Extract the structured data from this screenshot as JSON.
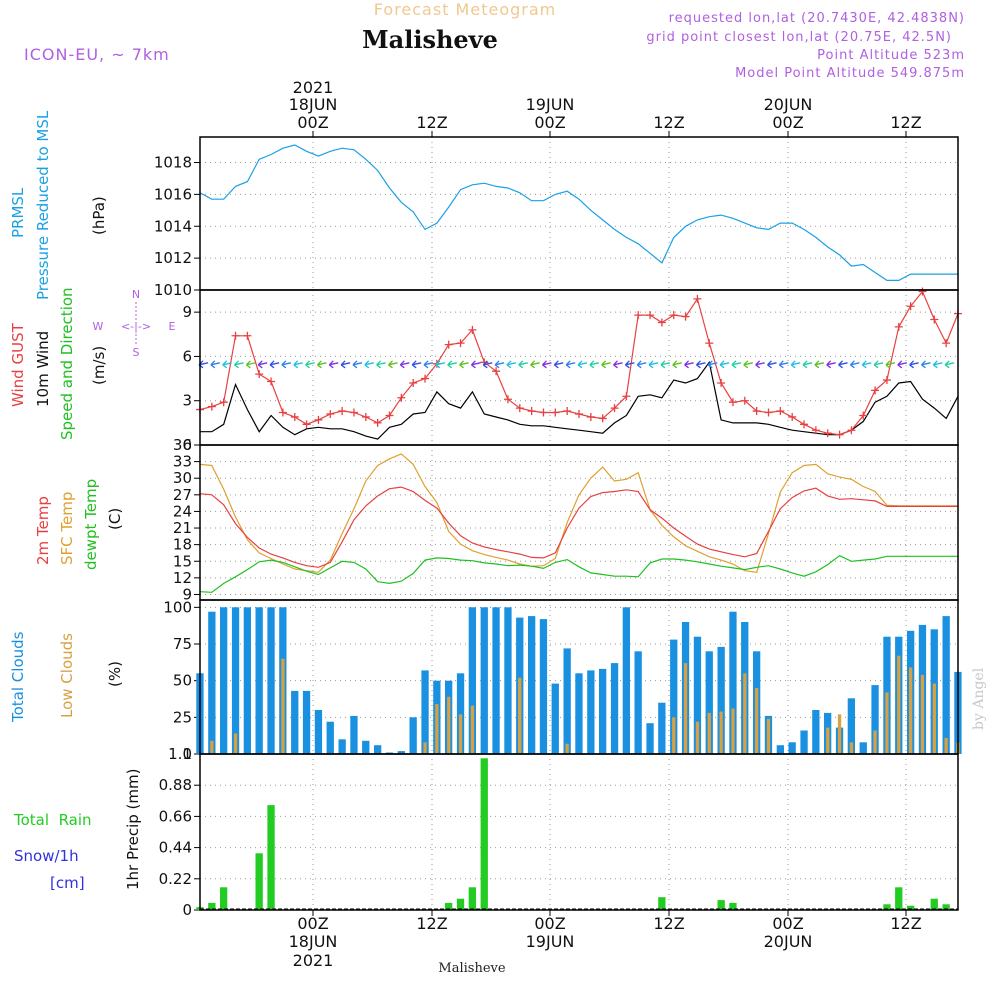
{
  "header": {
    "supertitle": "Forecast Meteogram",
    "location": "Malisheve",
    "model": "ICON-EU, ~ 7km",
    "requested": "requested lon,lat (20.7430E, 42.4838N)",
    "gridpoint": "grid point closest lon,lat (20.75E, 42.5N)",
    "point_alt": "Point Altitude 523m",
    "model_alt": "Model Point Altitude 549.875m",
    "footer": "Malisheve",
    "credit": "by Angel"
  },
  "time_axis": {
    "top_ticks": [
      "00Z",
      "12Z",
      "00Z",
      "12Z",
      "00Z",
      "12Z"
    ],
    "top_dates": [
      "18JUN",
      "19JUN",
      "20JUN"
    ],
    "year": "2021",
    "bottom_ticks": [
      "00Z",
      "12Z",
      "00Z",
      "12Z",
      "00Z",
      "12Z"
    ],
    "bottom_dates": [
      "18JUN",
      "19JUN",
      "20JUN"
    ]
  },
  "panel_labels": {
    "prmsl": [
      "PRMSL",
      "Pressure Reduced to MSL",
      "(hPa)"
    ],
    "wind": [
      "Wind GUST",
      "10m Wind",
      "Speed and Direction",
      "(m/s)"
    ],
    "compass": [
      "N",
      "S",
      "W",
      "E",
      "<-|->"
    ],
    "temp": [
      "2m Temp",
      "SFC Temp",
      "dewpt Temp",
      "(C)"
    ],
    "clouds": [
      "Total Clouds",
      "Low Clouds",
      "(%)"
    ],
    "precip": [
      "Total  Rain",
      "Snow/1h",
      "[cm]",
      "1hr Precip (mm)"
    ]
  },
  "colors": {
    "pressure": "#1aa0e6",
    "gust": "#e84040",
    "wind": "#000000",
    "t2m": "#e84040",
    "tsfc": "#e0a030",
    "dewpt": "#20c020",
    "total_clouds": "#1a90e0",
    "low_clouds": "#d8a040",
    "rain": "#22cc22",
    "snow": "#3030e0",
    "title": "#5e5e5e",
    "supertitle": "#f0c890",
    "meta": "#b060e0"
  },
  "chart_data": [
    {
      "type": "line",
      "name": "prmsl",
      "x": [
        0,
        1,
        2,
        3,
        4,
        5,
        6,
        7,
        8,
        9,
        10,
        11,
        12,
        13,
        14,
        15,
        16,
        17,
        18,
        19,
        20,
        21,
        22,
        23,
        24,
        25,
        26,
        27,
        28,
        29,
        30,
        31,
        32,
        33,
        34,
        35,
        36,
        37,
        38,
        39,
        40,
        41,
        42,
        43,
        44,
        45,
        46,
        47,
        48,
        49,
        50,
        51,
        52,
        53,
        54,
        55,
        56,
        57,
        58,
        59,
        60,
        61,
        62,
        63,
        64
      ],
      "y": [
        1016.1,
        1015.7,
        1015.7,
        1016.5,
        1016.8,
        1018.2,
        1018.5,
        1018.9,
        1019.1,
        1018.7,
        1018.4,
        1018.7,
        1018.9,
        1018.8,
        1018.2,
        1017.5,
        1016.4,
        1015.5,
        1014.9,
        1013.8,
        1014.2,
        1015.2,
        1016.3,
        1016.6,
        1016.7,
        1016.5,
        1016.4,
        1016.1,
        1015.6,
        1015.6,
        1016.0,
        1016.2,
        1015.7,
        1015.0,
        1014.4,
        1013.8,
        1013.3,
        1012.9,
        1012.3,
        1011.7,
        1013.3,
        1014.0,
        1014.4,
        1014.6,
        1014.7,
        1014.5,
        1014.2,
        1013.9,
        1013.8,
        1014.2,
        1014.2,
        1013.8,
        1013.3,
        1012.7,
        1012.2,
        1011.5,
        1011.6,
        1011.1,
        1010.6,
        1010.6,
        1011.0,
        1011.0,
        1011.0,
        1011.0,
        1011.0
      ],
      "ylim": [
        1010,
        1019.6
      ],
      "yticks": [
        1010,
        1012,
        1014,
        1016,
        1018
      ]
    },
    {
      "type": "line",
      "name": "wind",
      "x": [
        0,
        1,
        2,
        3,
        4,
        5,
        6,
        7,
        8,
        9,
        10,
        11,
        12,
        13,
        14,
        15,
        16,
        17,
        18,
        19,
        20,
        21,
        22,
        23,
        24,
        25,
        26,
        27,
        28,
        29,
        30,
        31,
        32,
        33,
        34,
        35,
        36,
        37,
        38,
        39,
        40,
        41,
        42,
        43,
        44,
        45,
        46,
        47,
        48,
        49,
        50,
        51,
        52,
        53,
        54,
        55,
        56,
        57,
        58,
        59,
        60,
        61,
        62,
        63,
        64
      ],
      "gust": [
        2.4,
        2.6,
        2.9,
        7.4,
        7.4,
        4.8,
        4.3,
        2.2,
        1.9,
        1.4,
        1.7,
        2.1,
        2.3,
        2.2,
        1.9,
        1.5,
        2.0,
        3.2,
        4.2,
        4.5,
        5.5,
        6.8,
        6.9,
        7.8,
        5.6,
        5.0,
        3.1,
        2.5,
        2.3,
        2.2,
        2.2,
        2.3,
        2.1,
        1.9,
        1.8,
        2.5,
        3.3,
        8.8,
        8.8,
        8.3,
        8.8,
        8.7,
        9.9,
        6.9,
        4.2,
        2.9,
        3.0,
        2.3,
        2.2,
        2.3,
        1.9,
        1.4,
        1.0,
        0.8,
        0.7,
        1.0,
        2.0,
        3.7,
        4.4,
        8.0,
        9.4,
        10.4,
        8.5,
        6.9,
        8.9
      ],
      "speed": [
        0.9,
        0.9,
        1.4,
        4.1,
        2.4,
        0.9,
        2.0,
        1.2,
        0.7,
        1.1,
        1.2,
        1.1,
        1.1,
        0.9,
        0.6,
        0.4,
        1.2,
        1.4,
        2.1,
        2.2,
        3.6,
        2.8,
        2.5,
        3.6,
        2.1,
        1.9,
        1.7,
        1.4,
        1.3,
        1.3,
        1.2,
        1.1,
        1.0,
        0.9,
        0.8,
        1.5,
        2.0,
        3.3,
        3.4,
        3.2,
        4.4,
        4.2,
        4.5,
        5.6,
        1.7,
        1.5,
        1.5,
        1.5,
        1.4,
        1.2,
        1.0,
        0.9,
        0.8,
        0.7,
        0.7,
        1.0,
        1.6,
        2.9,
        3.3,
        4.2,
        4.3,
        3.1,
        2.5,
        1.8,
        3.3
      ],
      "ylim": [
        0,
        10.5
      ],
      "yticks": [
        0,
        3,
        6,
        9
      ]
    },
    {
      "type": "line",
      "name": "temperature",
      "x": [
        0,
        1,
        2,
        3,
        4,
        5,
        6,
        7,
        8,
        9,
        10,
        11,
        12,
        13,
        14,
        15,
        16,
        17,
        18,
        19,
        20,
        21,
        22,
        23,
        24,
        25,
        26,
        27,
        28,
        29,
        30,
        31,
        32,
        33,
        34,
        35,
        36,
        37,
        38,
        39,
        40,
        41,
        42,
        43,
        44,
        45,
        46,
        47,
        48,
        49,
        50,
        51,
        52,
        53,
        54,
        55,
        56,
        57,
        58,
        59,
        60,
        61,
        62,
        63,
        64
      ],
      "t2m": [
        27.2,
        27.0,
        25.2,
        21.8,
        19.3,
        17.4,
        16.3,
        15.6,
        14.8,
        14.2,
        13.9,
        14.8,
        18.5,
        22.5,
        25.0,
        26.8,
        28.1,
        28.4,
        27.6,
        26.0,
        24.6,
        21.9,
        19.6,
        18.3,
        17.6,
        17.1,
        16.7,
        16.3,
        15.7,
        15.6,
        16.5,
        21.0,
        24.6,
        26.7,
        27.4,
        27.6,
        27.9,
        27.6,
        24.3,
        22.8,
        21.0,
        19.5,
        18.1,
        17.2,
        16.7,
        16.2,
        15.8,
        16.4,
        20.4,
        24.5,
        26.5,
        27.7,
        28.2,
        26.8,
        26.2,
        26.3,
        26.1,
        25.9,
        24.9,
        24.9,
        24.9,
        24.9,
        24.9,
        24.9,
        24.9
      ],
      "tsfc": [
        32.5,
        32.3,
        28.0,
        23.0,
        18.9,
        16.5,
        15.5,
        14.5,
        13.6,
        13.3,
        13.0,
        15.2,
        20.0,
        24.5,
        29.5,
        32.3,
        33.5,
        34.4,
        32.5,
        28.5,
        25.6,
        20.4,
        18.1,
        16.9,
        16.2,
        15.7,
        15.2,
        14.5,
        14.1,
        14.2,
        15.5,
        22.0,
        27.0,
        30.0,
        32.0,
        29.5,
        29.8,
        31.0,
        24.3,
        21.5,
        19.4,
        17.8,
        16.8,
        15.8,
        15.2,
        14.5,
        13.3,
        13.0,
        20.0,
        27.5,
        31.0,
        32.3,
        32.5,
        30.8,
        30.2,
        29.8,
        28.5,
        27.6,
        25.1,
        25.0,
        25.0,
        25.0,
        25.0,
        25.0,
        25.0
      ],
      "dewpt": [
        9.5,
        9.4,
        11.0,
        12.2,
        13.5,
        14.9,
        15.2,
        14.8,
        14.0,
        13.2,
        12.6,
        13.8,
        15.0,
        14.8,
        13.6,
        11.3,
        11.0,
        11.4,
        12.8,
        15.2,
        15.6,
        15.5,
        15.2,
        15.1,
        14.7,
        14.5,
        14.2,
        14.3,
        14.1,
        13.7,
        14.8,
        15.3,
        14.0,
        12.9,
        12.6,
        12.3,
        12.3,
        12.2,
        14.7,
        15.4,
        15.4,
        15.2,
        14.9,
        14.5,
        14.1,
        13.8,
        13.5,
        13.9,
        14.2,
        13.6,
        12.9,
        12.3,
        13.1,
        14.4,
        16.0,
        15.0,
        15.2,
        15.4,
        15.9,
        15.9,
        15.9,
        15.9,
        15.9,
        15.9,
        15.9
      ],
      "ylim": [
        8,
        36
      ],
      "yticks": [
        9,
        12,
        15,
        18,
        21,
        24,
        27,
        30,
        33,
        36
      ]
    },
    {
      "type": "bar",
      "name": "clouds",
      "x": [
        0,
        1,
        2,
        3,
        4,
        5,
        6,
        7,
        8,
        9,
        10,
        11,
        12,
        13,
        14,
        15,
        16,
        17,
        18,
        19,
        20,
        21,
        22,
        23,
        24,
        25,
        26,
        27,
        28,
        29,
        30,
        31,
        32,
        33,
        34,
        35,
        36,
        37,
        38,
        39,
        40,
        41,
        42,
        43,
        44,
        45,
        46,
        47,
        48,
        49,
        50,
        51,
        52,
        53,
        54,
        55,
        56,
        57,
        58,
        59,
        60,
        61,
        62,
        63,
        64
      ],
      "total": [
        55,
        97,
        100,
        100,
        100,
        100,
        100,
        100,
        43,
        43,
        30,
        22,
        10,
        26,
        9,
        6,
        1,
        2,
        25,
        57,
        50,
        50,
        55,
        100,
        100,
        100,
        100,
        93,
        94,
        92,
        48,
        72,
        55,
        57,
        58,
        62,
        100,
        70,
        21,
        35,
        78,
        90,
        80,
        70,
        73,
        97,
        90,
        70,
        26,
        6,
        8,
        16,
        30,
        28,
        18,
        38,
        8,
        47,
        80,
        80,
        84,
        88,
        85,
        94,
        56
      ],
      "low": [
        0,
        9,
        0,
        14,
        0,
        0,
        0,
        65,
        0,
        0,
        0,
        0,
        0,
        0,
        0,
        0,
        0,
        0,
        0,
        8,
        34,
        39,
        27,
        33,
        0,
        0,
        0,
        52,
        0,
        0,
        0,
        7,
        0,
        0,
        0,
        0,
        0,
        0,
        0,
        0,
        25,
        62,
        22,
        28,
        29,
        31,
        55,
        45,
        24,
        0,
        0,
        0,
        0,
        18,
        27,
        8,
        0,
        16,
        42,
        67,
        59,
        54,
        48,
        11,
        8
      ],
      "ylim": [
        0,
        105
      ],
      "yticks": [
        0,
        25,
        50,
        75,
        100
      ]
    },
    {
      "type": "bar",
      "name": "precip",
      "x": [
        0,
        1,
        2,
        3,
        4,
        5,
        6,
        7,
        8,
        9,
        10,
        11,
        12,
        13,
        14,
        15,
        16,
        17,
        18,
        19,
        20,
        21,
        22,
        23,
        24,
        25,
        26,
        27,
        28,
        29,
        30,
        31,
        32,
        33,
        34,
        35,
        36,
        37,
        38,
        39,
        40,
        41,
        42,
        43,
        44,
        45,
        46,
        47,
        48,
        49,
        50,
        51,
        52,
        53,
        54,
        55,
        56,
        57,
        58,
        59,
        60,
        61,
        62,
        63,
        64
      ],
      "rain": [
        0.02,
        0.05,
        0.16,
        0,
        0,
        0.4,
        0.74,
        0,
        0,
        0,
        0,
        0,
        0,
        0,
        0,
        0,
        0,
        0,
        0,
        0,
        0,
        0.05,
        0.08,
        0.16,
        1.07,
        0,
        0,
        0,
        0,
        0,
        0,
        0,
        0,
        0,
        0,
        0,
        0,
        0,
        0,
        0.09,
        0,
        0,
        0,
        0,
        0.07,
        0.05,
        0,
        0,
        0,
        0,
        0,
        0,
        0,
        0,
        0,
        0,
        0,
        0,
        0.04,
        0.16,
        0.03,
        0,
        0.08,
        0.04,
        0
      ],
      "ylim": [
        0,
        1.1
      ],
      "yticks": [
        0,
        0.22,
        0.44,
        0.66,
        0.88,
        1.1
      ],
      "yticklabels": [
        "0",
        "0.22",
        "0.44",
        "0.66",
        "0.88",
        "1.1"
      ]
    }
  ]
}
